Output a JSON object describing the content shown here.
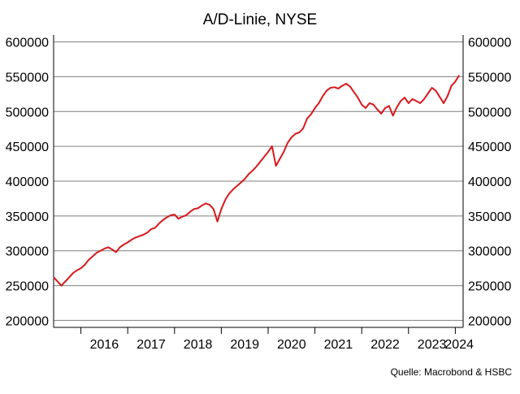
{
  "chart_data": {
    "type": "line",
    "title": "A/D-Linie, NYSE",
    "xlabel": "",
    "ylabel": "",
    "source": "Quelle: Macrobond & HSBC",
    "ylim": [
      190000,
      610000
    ],
    "xlim": [
      "2015-06",
      "2024-03"
    ],
    "y_ticks": [
      200000,
      250000,
      300000,
      350000,
      400000,
      450000,
      500000,
      550000,
      600000
    ],
    "y_tick_labels": [
      "200000",
      "250000",
      "300000",
      "350000",
      "400000",
      "450000",
      "500000",
      "550000",
      "600000"
    ],
    "x_tick_labels": [
      "2016",
      "2017",
      "2018",
      "2019",
      "2020",
      "2021",
      "2022",
      "2023",
      "2024"
    ],
    "grid": "horizontal",
    "y_axis_sides": "both",
    "line_color": "#d7191c",
    "series": [
      {
        "x": [
          "2015-06",
          "2015-07",
          "2015-08",
          "2015-09",
          "2015-10",
          "2015-11",
          "2015-12",
          "2016-01",
          "2016-02",
          "2016-03",
          "2016-04",
          "2016-05",
          "2016-06",
          "2016-07",
          "2016-08",
          "2016-09",
          "2016-10",
          "2016-11",
          "2016-12",
          "2017-01",
          "2017-02",
          "2017-03",
          "2017-04",
          "2017-05",
          "2017-06",
          "2017-07",
          "2017-08",
          "2017-09",
          "2017-10",
          "2017-11",
          "2017-12",
          "2018-01",
          "2018-02",
          "2018-03",
          "2018-04",
          "2018-05",
          "2018-06",
          "2018-07",
          "2018-08",
          "2018-09",
          "2018-10",
          "2018-11",
          "2018-12",
          "2019-01",
          "2019-02",
          "2019-03",
          "2019-04",
          "2019-05",
          "2019-06",
          "2019-07",
          "2019-08",
          "2019-09",
          "2019-10",
          "2019-11",
          "2019-12",
          "2020-01",
          "2020-02",
          "2020-03",
          "2020-04",
          "2020-05",
          "2020-06",
          "2020-07",
          "2020-08",
          "2020-09",
          "2020-10",
          "2020-11",
          "2020-12",
          "2021-01",
          "2021-02",
          "2021-03",
          "2021-04",
          "2021-05",
          "2021-06",
          "2021-07",
          "2021-08",
          "2021-09",
          "2021-10",
          "2021-11",
          "2021-12",
          "2022-01",
          "2022-02",
          "2022-03",
          "2022-04",
          "2022-05",
          "2022-06",
          "2022-07",
          "2022-08",
          "2022-09",
          "2022-10",
          "2022-11",
          "2022-12",
          "2023-01",
          "2023-02",
          "2023-03",
          "2023-04",
          "2023-05",
          "2023-06",
          "2023-07",
          "2023-08",
          "2023-09",
          "2023-10",
          "2023-11",
          "2023-12",
          "2024-01",
          "2024-02"
        ],
        "values": [
          262000,
          256000,
          250000,
          256000,
          262000,
          268000,
          272000,
          275000,
          280000,
          287000,
          292000,
          297000,
          300000,
          303000,
          305000,
          302000,
          298000,
          305000,
          309000,
          312000,
          316000,
          319000,
          321000,
          323000,
          326000,
          331000,
          333000,
          339000,
          344000,
          348000,
          351000,
          352000,
          346000,
          349000,
          351000,
          356000,
          360000,
          361000,
          365000,
          368000,
          366000,
          360000,
          342000,
          360000,
          373000,
          382000,
          388000,
          393000,
          398000,
          403000,
          410000,
          415000,
          421000,
          428000,
          435000,
          442000,
          450000,
          422000,
          432000,
          442000,
          455000,
          463000,
          468000,
          470000,
          476000,
          490000,
          496000,
          505000,
          512000,
          522000,
          530000,
          534000,
          535000,
          533000,
          537000,
          540000,
          536000,
          528000,
          520000,
          510000,
          505000,
          512000,
          510000,
          503000,
          497000,
          505000,
          508000,
          494000,
          506000,
          515000,
          520000,
          512000,
          518000,
          515000,
          512000,
          518000,
          526000,
          534000,
          530000,
          521000,
          512000,
          522000,
          537000,
          543000,
          552000
        ]
      }
    ]
  }
}
